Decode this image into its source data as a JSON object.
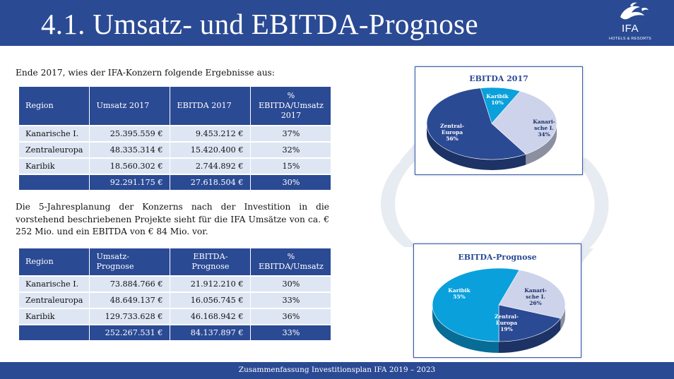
{
  "header": {
    "title": "4.1. Umsatz- und EBITDA-Prognose"
  },
  "logo": {
    "brand": "IFA",
    "sub": "HOTELS & RESORTS",
    "icon": "fish-icon"
  },
  "intro": "Ende 2017, wies der IFA-Konzern folgende Ergebnisse aus:",
  "table1": {
    "headers": [
      "Region",
      "Umsatz 2017",
      "EBITDA 2017",
      "%\nEBITDA/Umsatz\n2017"
    ],
    "rows": [
      [
        "Kanarische I.",
        "25.395.559 €",
        "9.453.212 €",
        "37%"
      ],
      [
        "Zentraleuropa",
        "48.335.314 €",
        "15.420.400 €",
        "32%"
      ],
      [
        "Karibik",
        "18.560.302 €",
        "2.744.892 €",
        "15%"
      ]
    ],
    "total": [
      "",
      "92.291.175 €",
      "27.618.504 €",
      "30%"
    ]
  },
  "middle_text": "Die 5-Jahresplanung der Konzerns nach der Investition in die vorstehend beschriebenen Projekte sieht für die IFA Umsätze von ca. € 252 Mio. und ein EBITDA von € 84 Mio. vor.",
  "table2": {
    "headers": [
      "Region",
      "Umsatz-Prognose",
      "EBITDA-\nPrognose",
      "%\nEBITDA/Umsatz"
    ],
    "rows": [
      [
        "Kanarische I.",
        "73.884.766 €",
        "21.912.210 €",
        "30%"
      ],
      [
        "Zentraleuropa",
        "48.649.137 €",
        "16.056.745 €",
        "33%"
      ],
      [
        "Karibik",
        "129.733.628 €",
        "46.168.942 €",
        "36%"
      ]
    ],
    "total": [
      "",
      "252.267.531 €",
      "84.137.897 €",
      "33%"
    ]
  },
  "footer": "Zusammenfassung Investitionsplan IFA 2019 – 2023",
  "chart_data": [
    {
      "type": "pie",
      "title": "EBITDA 2017",
      "slices": [
        {
          "label": "Karibik",
          "value": 10,
          "text": "10%",
          "color": "#0aa0dc"
        },
        {
          "label": "Kanari-\nsche I.",
          "value": 34,
          "text": "34%",
          "color": "#ccd3ea"
        },
        {
          "label": "Zentral-\nEuropa",
          "value": 56,
          "text": "56%",
          "color": "#2b4a94"
        }
      ]
    },
    {
      "type": "pie",
      "title": "EBITDA-Prognose",
      "slices": [
        {
          "label": "Kanari-\nsche I.",
          "value": 26,
          "text": "26%",
          "color": "#ccd3ea"
        },
        {
          "label": "Zentral-\nEuropa",
          "value": 19,
          "text": "19%",
          "color": "#2b4a94"
        },
        {
          "label": "Karibik",
          "value": 55,
          "text": "55%",
          "color": "#0aa0dc"
        }
      ]
    }
  ]
}
